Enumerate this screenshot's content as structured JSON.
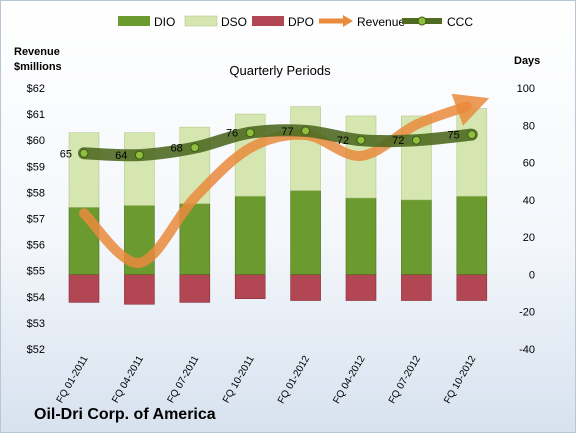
{
  "company_title": "Oil-Dri Corp. of America",
  "legend": {
    "dio": "DIO",
    "dso": "DSO",
    "dpo": "DPO",
    "revenue": "Revenue",
    "ccc": "CCC"
  },
  "colors": {
    "dio": "#6b9a2e",
    "dso": "#d6e6b0",
    "dpo": "#b24653",
    "revenue": "#e98a3c",
    "ccc": "#4f6a22"
  },
  "chart_data": {
    "type": "bar",
    "subtitle": "Quarterly Periods",
    "ylabel_left": "Revenue\n$millions",
    "ylabel_right": "Days",
    "categories": [
      "FQ 01-2011",
      "FQ 04-2011",
      "FQ 07-2011",
      "FQ 10-2011",
      "FQ 01-2012",
      "FQ 04-2012",
      "FQ 07-2012",
      "FQ 10-2012"
    ],
    "left_axis": {
      "ylim": [
        52,
        62
      ],
      "ticks": [
        "$52",
        "$53",
        "$54",
        "$55",
        "$56",
        "$57",
        "$58",
        "$59",
        "$60",
        "$61",
        "$62"
      ]
    },
    "right_axis": {
      "ylim": [
        -40,
        100
      ],
      "ticks": [
        "-40",
        "-20",
        "0",
        "20",
        "40",
        "60",
        "80",
        "100"
      ]
    },
    "series": [
      {
        "name": "DIO",
        "axis": "right",
        "values": [
          36,
          37,
          38,
          42,
          45,
          41,
          40,
          42
        ]
      },
      {
        "name": "DSO",
        "axis": "right",
        "values": [
          40,
          39,
          41,
          44,
          45,
          44,
          45,
          47
        ]
      },
      {
        "name": "DPO",
        "axis": "right",
        "values": [
          -15,
          -16,
          -15,
          -13,
          -14,
          -14,
          -14,
          -14
        ]
      },
      {
        "name": "CCC",
        "axis": "right",
        "values": [
          65,
          64,
          68,
          76,
          77,
          72,
          72,
          75
        ]
      },
      {
        "name": "Revenue",
        "axis": "left",
        "values": [
          57.2,
          55.3,
          57.8,
          59.7,
          60.2,
          59.4,
          60.6,
          61.3
        ]
      }
    ],
    "ccc_labels": [
      "65",
      "64",
      "68",
      "76",
      "77",
      "72",
      "72",
      "75"
    ],
    "legend_position": "top",
    "grid": false
  }
}
